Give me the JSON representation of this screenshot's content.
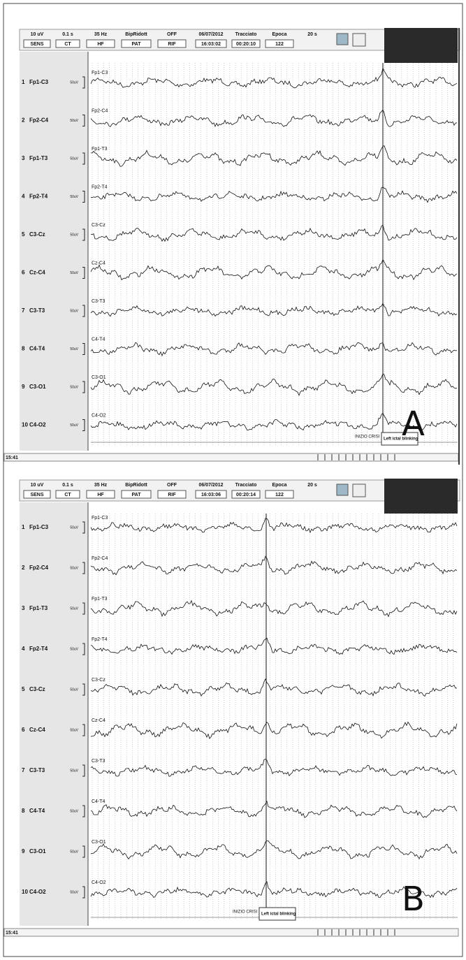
{
  "panels": [
    {
      "letter": "A",
      "time": "15:41",
      "toolbar": {
        "row1": [
          "10 uV",
          "0.1 s",
          "35 Hz",
          "BipRidott",
          "OFF",
          "06/07/2012",
          "Tracciato",
          "Epoca",
          "20 s"
        ],
        "row2": [
          "SENS",
          "CT",
          "HF",
          "PAT",
          "RIF",
          "16:03:02",
          "00:20:10",
          "122"
        ]
      },
      "channels": [
        {
          "number": "1",
          "label": "Fp1-C3",
          "scale": "50uV",
          "trace": "Fp1-C3"
        },
        {
          "number": "2",
          "label": "Fp2-C4",
          "scale": "50uV",
          "trace": "Fp2-C4"
        },
        {
          "number": "3",
          "label": "Fp1-T3",
          "scale": "50uV",
          "trace": "Fp1-T3"
        },
        {
          "number": "4",
          "label": "Fp2-T4",
          "scale": "50uV",
          "trace": "Fp2-T4"
        },
        {
          "number": "5",
          "label": "C3-Cz",
          "scale": "50uV",
          "trace": "C3-Cz"
        },
        {
          "number": "6",
          "label": "Cz-C4",
          "scale": "50uV",
          "trace": "Cz-C4"
        },
        {
          "number": "7",
          "label": "C3-T3",
          "scale": "50uV",
          "trace": "C3-T3"
        },
        {
          "number": "8",
          "label": "C4-T4",
          "scale": "50uV",
          "trace": "C4-T4"
        },
        {
          "number": "9",
          "label": "C3-O1",
          "scale": "50uV",
          "trace": "C3-O1"
        },
        {
          "number": "10",
          "label": "C4-O2",
          "scale": "50uV",
          "trace": "C4-O2"
        }
      ],
      "annotations": {
        "onset": "INIZIO CRISI",
        "event": "Left ictal blinking"
      }
    },
    {
      "letter": "B",
      "time": "15:41",
      "toolbar": {
        "row1": [
          "10 uV",
          "0.1 s",
          "35 Hz",
          "BipRidott",
          "OFF",
          "06/07/2012",
          "Tracciato",
          "Epoca",
          "20 s"
        ],
        "row2": [
          "SENS",
          "CT",
          "HF",
          "PAT",
          "RIF",
          "16:03:06",
          "00:20:14",
          "122"
        ]
      },
      "channels": [
        {
          "number": "1",
          "label": "Fp1-C3",
          "scale": "50uV",
          "trace": "Fp1-C3"
        },
        {
          "number": "2",
          "label": "Fp2-C4",
          "scale": "50uV",
          "trace": "Fp2-C4"
        },
        {
          "number": "3",
          "label": "Fp1-T3",
          "scale": "50uV",
          "trace": "Fp1-T3"
        },
        {
          "number": "4",
          "label": "Fp2-T4",
          "scale": "50uV",
          "trace": "Fp2-T4"
        },
        {
          "number": "5",
          "label": "C3-Cz",
          "scale": "50uV",
          "trace": "C3-Cz"
        },
        {
          "number": "6",
          "label": "Cz-C4",
          "scale": "50uV",
          "trace": "Cz-C4"
        },
        {
          "number": "7",
          "label": "C3-T3",
          "scale": "50uV",
          "trace": "C3-T3"
        },
        {
          "number": "8",
          "label": "C4-T4",
          "scale": "50uV",
          "trace": "C4-T4"
        },
        {
          "number": "9",
          "label": "C3-O1",
          "scale": "50uV",
          "trace": "C3-O1"
        },
        {
          "number": "10",
          "label": "C4-O2",
          "scale": "50uV",
          "trace": "C4-O2"
        }
      ],
      "annotations": {
        "onset": "INIZIO CRISI",
        "event": "Left ictal blinking"
      }
    }
  ]
}
